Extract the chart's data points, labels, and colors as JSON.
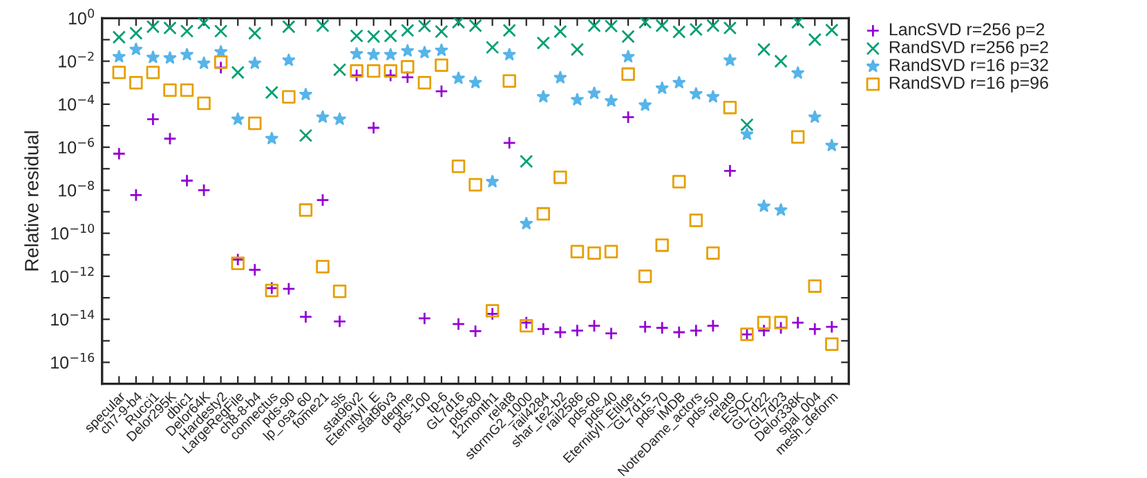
{
  "chart_data": {
    "type": "scatter",
    "ylabel": "Relative residual",
    "log": "y",
    "grid": false,
    "legend": "top right",
    "categories": [
      "specular",
      "ch7-9-b4",
      "Rucci1",
      "Delor295K",
      "dbic1",
      "Delor64K",
      "Hardesty2",
      "LargeRegFile",
      "ch8-8-b4",
      "connectus",
      "pds-90",
      "lp_osa_60",
      "fome21",
      "sls",
      "stat96v2",
      "EternityII_E",
      "stat96v3",
      "degme",
      "pds-100",
      "tp-6",
      "GL7d16",
      "pds-80",
      "12month1",
      "relat8",
      "stormG2_1000",
      "rail4284",
      "shar_te2-b2",
      "rail2586",
      "pds-60",
      "pds-40",
      "EternityII_Etilde",
      "GL7d15",
      "pds-70",
      "IMDB",
      "NotreDame_actors",
      "pds-50",
      "relat9",
      "ESOC",
      "GL7d22",
      "GL7d23",
      "Delor338K",
      "spal_004",
      "mesh_deform"
    ],
    "ylim": [
      1e-17,
      1
    ],
    "yticks": [
      {
        "value": 1,
        "label": "10$^{0}$"
      },
      {
        "value": 0.1,
        "label": null
      },
      {
        "value": 0.01,
        "label": "10$^{−2}$"
      },
      {
        "value": 0.001,
        "label": null
      },
      {
        "value": 0.0001,
        "label": "10$^{−4}$"
      },
      {
        "value": 1e-05,
        "label": null
      },
      {
        "value": 1e-06,
        "label": "10$^{−6}$"
      },
      {
        "value": 1e-07,
        "label": null
      },
      {
        "value": 1e-08,
        "label": "10$^{−8}$"
      },
      {
        "value": 1e-09,
        "label": null
      },
      {
        "value": 1e-10,
        "label": "10$^{−10}$"
      },
      {
        "value": 1e-11,
        "label": null
      },
      {
        "value": 1e-12,
        "label": "10$^{−12}$"
      },
      {
        "value": 1e-13,
        "label": null
      },
      {
        "value": 1e-14,
        "label": "10$^{−14}$"
      },
      {
        "value": 1e-15,
        "label": null
      },
      {
        "value": 1e-16,
        "label": "10$^{−16}$"
      },
      {
        "value": 1e-17,
        "label": null
      }
    ],
    "series": [
      {
        "name": "LancSVD r=256 p=2",
        "color": "#9400d3",
        "marker": "cross",
        "values": [
          5e-07,
          6e-09,
          2e-05,
          2.5e-06,
          2.8e-08,
          1e-08,
          0.005,
          6e-12,
          2e-12,
          2.8e-13,
          2.6e-13,
          1.3e-14,
          3.5e-09,
          8e-15,
          0.0022,
          8e-06,
          0.0022,
          0.0018,
          1.1e-14,
          0.0004,
          6e-15,
          2.8e-15,
          1.8e-14,
          1.6e-06,
          7e-15,
          3.5e-15,
          2.5e-15,
          3e-15,
          5e-15,
          2.2e-15,
          2.5e-05,
          4.5e-15,
          4e-15,
          2.5e-15,
          3e-15,
          5e-15,
          8e-08,
          2e-15,
          3e-15,
          4e-15,
          7e-15,
          3.5e-15,
          4.5e-15
        ]
      },
      {
        "name": "RandSVD r=256 p=2",
        "color": "#009e73",
        "marker": "x",
        "values": [
          0.13,
          0.2,
          0.4,
          0.35,
          0.25,
          0.6,
          0.25,
          0.003,
          0.2,
          0.00035,
          0.4,
          3.5e-06,
          0.45,
          0.004,
          0.15,
          0.14,
          0.15,
          0.27,
          0.43,
          0.24,
          0.65,
          0.45,
          0.044,
          0.27,
          2.2e-07,
          0.07,
          0.24,
          0.035,
          0.45,
          0.43,
          0.14,
          0.65,
          0.45,
          0.23,
          0.3,
          0.45,
          0.35,
          1.1e-05,
          0.035,
          0.01,
          0.65,
          0.1,
          0.28
        ]
      },
      {
        "name": "RandSVD r=16 p=32",
        "color": "#56b4e9",
        "marker": "star",
        "values": [
          0.016,
          0.035,
          0.015,
          0.014,
          0.02,
          0.008,
          0.027,
          2e-05,
          0.008,
          2.5e-06,
          0.011,
          0.00028,
          2.5e-05,
          2e-05,
          0.022,
          0.02,
          0.02,
          0.03,
          0.025,
          0.032,
          0.0016,
          0.001,
          2.5e-08,
          0.02,
          2.8e-10,
          0.00022,
          0.0017,
          0.00016,
          0.00032,
          0.00014,
          0.016,
          9e-05,
          0.00055,
          0.001,
          0.0003,
          0.00022,
          0.011,
          4e-06,
          1.8e-09,
          1.2e-09,
          0.0028,
          2.5e-05,
          1.2e-06
        ]
      },
      {
        "name": "RandSVD r=16 p=96",
        "color": "#e69f00",
        "marker": "square",
        "values": [
          0.003,
          0.001,
          0.003,
          0.00045,
          0.00045,
          0.00011,
          0.009,
          4e-12,
          1.3e-05,
          2.2e-13,
          0.00022,
          1.2e-09,
          2.8e-12,
          2e-13,
          0.0035,
          0.0035,
          0.0035,
          0.0055,
          0.001,
          0.0065,
          1.3e-07,
          1.8e-08,
          2.5e-14,
          0.0012,
          5e-15,
          8e-10,
          4e-08,
          1.4e-11,
          1.2e-11,
          1.4e-11,
          0.0025,
          1e-12,
          2.8e-11,
          2.5e-08,
          4e-10,
          1.2e-11,
          7e-05,
          2e-15,
          7e-15,
          7e-15,
          3e-06,
          3.5e-13,
          7e-16
        ]
      }
    ]
  }
}
